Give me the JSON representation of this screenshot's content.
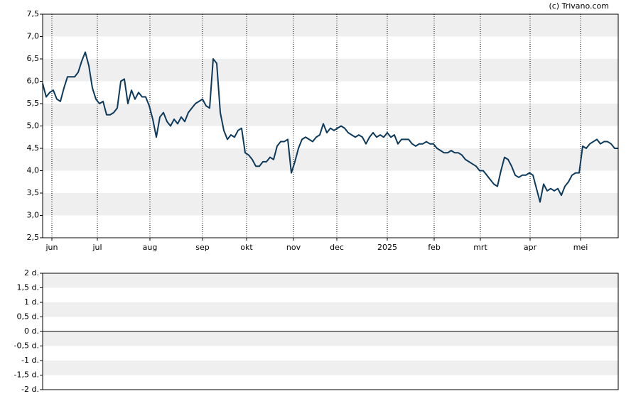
{
  "source": "(c) Trivano.com",
  "chart_data": [
    {
      "type": "line",
      "series": [
        {
          "color": "#0d3a5c",
          "values": [
            5.95,
            5.65,
            5.75,
            5.8,
            5.6,
            5.55,
            5.85,
            6.1,
            6.1,
            6.1,
            6.2,
            6.45,
            6.65,
            6.35,
            5.85,
            5.6,
            5.5,
            5.55,
            5.25,
            5.25,
            5.3,
            5.4,
            6.0,
            6.05,
            5.5,
            5.8,
            5.6,
            5.75,
            5.65,
            5.65,
            5.45,
            5.15,
            4.75,
            5.2,
            5.3,
            5.1,
            5.0,
            5.15,
            5.05,
            5.2,
            5.1,
            5.3,
            5.4,
            5.5,
            5.55,
            5.6,
            5.45,
            5.4,
            6.5,
            6.4,
            5.3,
            4.9,
            4.7,
            4.8,
            4.75,
            4.9,
            4.95,
            4.4,
            4.35,
            4.25,
            4.1,
            4.1,
            4.2,
            4.2,
            4.3,
            4.25,
            4.55,
            4.65,
            4.65,
            4.7,
            3.95,
            4.2,
            4.5,
            4.7,
            4.75,
            4.7,
            4.65,
            4.75,
            4.8,
            5.05,
            4.85,
            4.95,
            4.9,
            4.95,
            5.0,
            4.95,
            4.85,
            4.8,
            4.75,
            4.8,
            4.75,
            4.6,
            4.75,
            4.85,
            4.75,
            4.8,
            4.75,
            4.85,
            4.75,
            4.8,
            4.6,
            4.7,
            4.7,
            4.7,
            4.6,
            4.55,
            4.6,
            4.6,
            4.65,
            4.6,
            4.6,
            4.5,
            4.45,
            4.4,
            4.4,
            4.45,
            4.4,
            4.4,
            4.35,
            4.25,
            4.2,
            4.15,
            4.1,
            4.0,
            4.0,
            3.9,
            3.8,
            3.7,
            3.65,
            4.0,
            4.3,
            4.25,
            4.1,
            3.9,
            3.85,
            3.9,
            3.9,
            3.95,
            3.9,
            3.6,
            3.3,
            3.7,
            3.55,
            3.6,
            3.55,
            3.6,
            3.45,
            3.65,
            3.75,
            3.9,
            3.95,
            3.95,
            4.55,
            4.5,
            4.6,
            4.65,
            4.7,
            4.6,
            4.65,
            4.65,
            4.6,
            4.5,
            4.5
          ]
        }
      ],
      "xlim": [
        0,
        162
      ],
      "xticks": [
        {
          "value": 2.6,
          "label": "jun"
        },
        {
          "value": 15.4,
          "label": "jul"
        },
        {
          "value": 30.2,
          "label": "aug"
        },
        {
          "value": 45,
          "label": "sep"
        },
        {
          "value": 57.4,
          "label": "okt"
        },
        {
          "value": 70.6,
          "label": "nov"
        },
        {
          "value": 82.8,
          "label": "dec"
        },
        {
          "value": 97,
          "label": "2025"
        },
        {
          "value": 110.2,
          "label": "feb"
        },
        {
          "value": 123.2,
          "label": "mrt"
        },
        {
          "value": 137.2,
          "label": "apr"
        },
        {
          "value": 151.4,
          "label": "mei"
        }
      ],
      "ylim": [
        2.5,
        7.5
      ],
      "yticks": [
        {
          "value": 2.5,
          "label": "2,5"
        },
        {
          "value": 3,
          "label": "3,0"
        },
        {
          "value": 3.5,
          "label": "3,5"
        },
        {
          "value": 4,
          "label": "4,0"
        },
        {
          "value": 4.5,
          "label": "4,5"
        },
        {
          "value": 5,
          "label": "5,0"
        },
        {
          "value": 5.5,
          "label": "5,5"
        },
        {
          "value": 6,
          "label": "6,0"
        },
        {
          "value": 6.5,
          "label": "6,5"
        },
        {
          "value": 7,
          "label": "7,0"
        },
        {
          "value": 7.5,
          "label": "7,5"
        }
      ],
      "grid": true
    },
    {
      "type": "line",
      "ylim": [
        -2,
        2
      ],
      "yticks": [
        {
          "value": -2,
          "label": "-2 d."
        },
        {
          "value": -1.5,
          "label": "-1,5 d."
        },
        {
          "value": -1,
          "label": "-1 d."
        },
        {
          "value": -0.5,
          "label": "-0,5 d."
        },
        {
          "value": 0,
          "label": "0 d."
        },
        {
          "value": 0.5,
          "label": "0,5 d."
        },
        {
          "value": 1,
          "label": "1 d."
        },
        {
          "value": 1.5,
          "label": "1,5 d."
        },
        {
          "value": 2,
          "label": "2 d."
        }
      ],
      "grid": true
    }
  ]
}
